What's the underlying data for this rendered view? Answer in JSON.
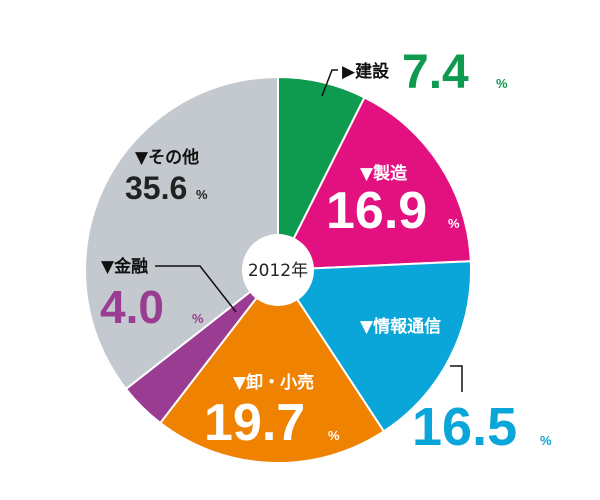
{
  "chart_data": {
    "type": "pie",
    "center_label": "2012年",
    "unit": "%",
    "slices": [
      {
        "label": "建設",
        "value": 7.4,
        "value_text": "7.4",
        "color": "#0e9a4f",
        "marker": "▶"
      },
      {
        "label": "製造",
        "value": 16.9,
        "value_text": "16.9",
        "color": "#e3107f",
        "marker": "▼"
      },
      {
        "label": "情報通信",
        "value": 16.5,
        "value_text": "16.5",
        "color": "#0aa5d9",
        "marker": "▼"
      },
      {
        "label": "卸・小売",
        "value": 19.7,
        "value_text": "19.7",
        "color": "#ef8200",
        "marker": "▼"
      },
      {
        "label": "金融",
        "value": 4.0,
        "value_text": "4.0",
        "color": "#9a3c92",
        "marker": "▼"
      },
      {
        "label": "その他",
        "value": 35.6,
        "value_text": "35.6",
        "color": "#c3c9ce",
        "marker": "▼"
      }
    ]
  }
}
